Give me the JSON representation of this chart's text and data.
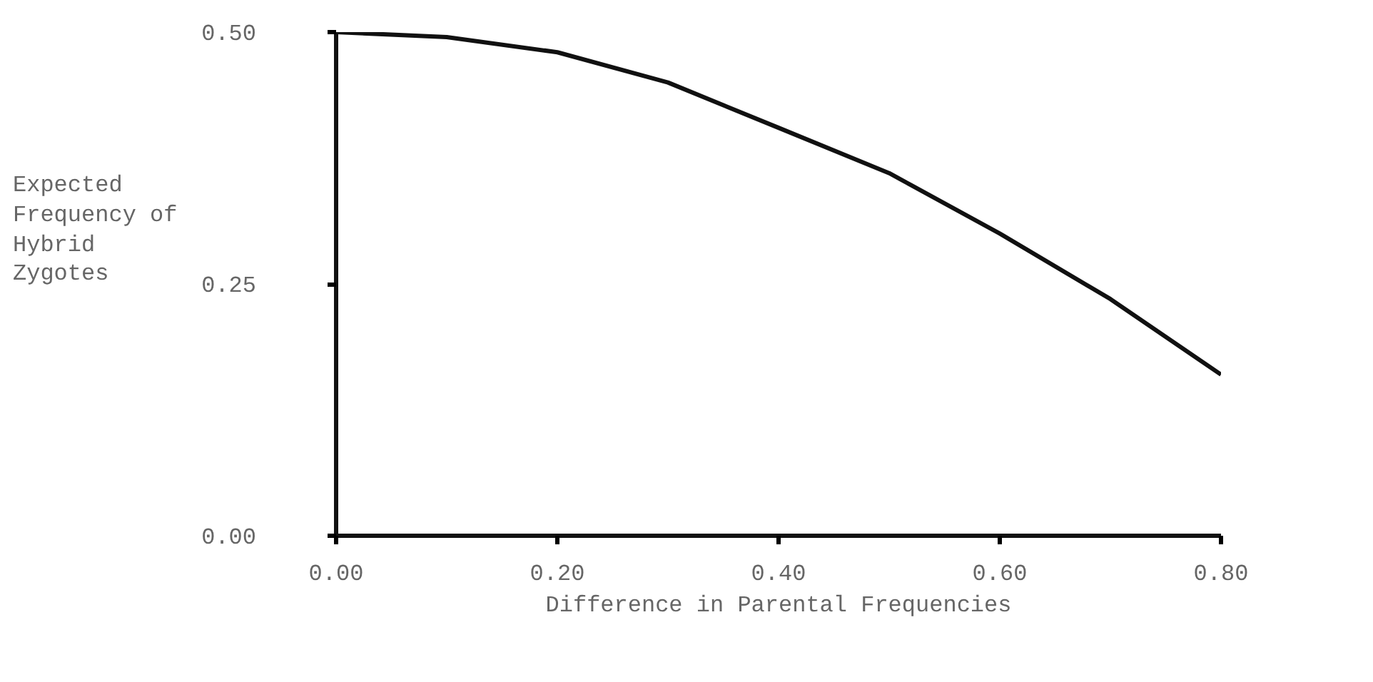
{
  "chart_data": {
    "type": "line",
    "xlabel": "Difference in Parental Frequencies",
    "ylabel": "Expected Frequency of Hybrid Zygotes",
    "x": [
      0,
      0.1,
      0.2,
      0.3,
      0.4,
      0.5,
      0.6,
      0.7,
      0.8
    ],
    "series": [
      {
        "color": "#111111",
        "values": [
          0.5,
          0.495,
          0.48,
          0.45,
          0.405,
          0.36,
          0.3,
          0.235,
          0.16
        ]
      }
    ],
    "xlim": [
      0,
      0.8
    ],
    "ylim": [
      0,
      0.5
    ],
    "xticks": [
      {
        "value": 0,
        "label": "0.00"
      },
      {
        "value": 0.2,
        "label": "0.20"
      },
      {
        "value": 0.4,
        "label": "0.40"
      },
      {
        "value": 0.6,
        "label": "0.60"
      },
      {
        "value": 0.8,
        "label": "0.80"
      }
    ],
    "yticks": [
      {
        "value": 0,
        "label": "0.00"
      },
      {
        "value": 0.25,
        "label": "0.25"
      },
      {
        "value": 0.5,
        "label": "0.50"
      }
    ],
    "grid": false,
    "marker": "none",
    "line_style": "solid"
  }
}
